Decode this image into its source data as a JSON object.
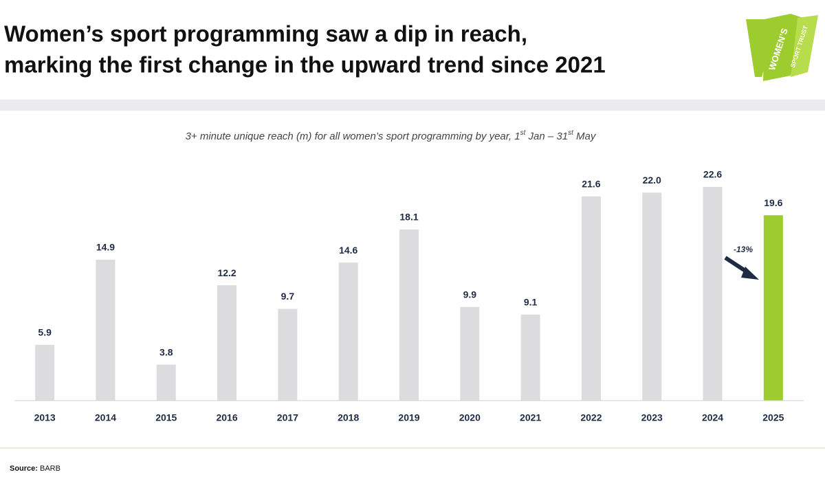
{
  "chart_data": {
    "type": "bar",
    "title": [
      "Women’s sport programming saw a dip in reach,",
      "marking the first change in the upward trend since 2021"
    ],
    "subtitle": [
      {
        "text": "3+ minute unique reach (m) for all women’s sport programming by year, 1"
      },
      {
        "sup": "st"
      },
      {
        "text": " Jan – 31"
      },
      {
        "sup": "st"
      },
      {
        "text": " May"
      }
    ],
    "categories": [
      "2013",
      "2014",
      "2015",
      "2016",
      "2017",
      "2018",
      "2019",
      "2020",
      "2021",
      "2022",
      "2023",
      "2024",
      "2025"
    ],
    "values": [
      5.9,
      14.9,
      3.8,
      12.2,
      9.7,
      14.6,
      18.1,
      9.9,
      9.1,
      21.6,
      22.0,
      22.6,
      19.6
    ],
    "value_labels": [
      "5.9",
      "14.9",
      "3.8",
      "12.2",
      "9.7",
      "14.6",
      "18.1",
      "9.9",
      "9.1",
      "21.6",
      "22.0",
      "22.6",
      "19.6"
    ],
    "colors": [
      "#dcdcde",
      "#dcdcde",
      "#dcdcde",
      "#dcdcde",
      "#dcdcde",
      "#dcdcde",
      "#dcdcde",
      "#dcdcde",
      "#dcdcde",
      "#dcdcde",
      "#dcdcde",
      "#dcdcde",
      "#9ccc2e"
    ],
    "annotation": "-13%",
    "source_label": "Source:",
    "source": "BARB",
    "logo": {
      "line1": "WOMEN’S",
      "line2": "SPORT TRUST"
    }
  }
}
